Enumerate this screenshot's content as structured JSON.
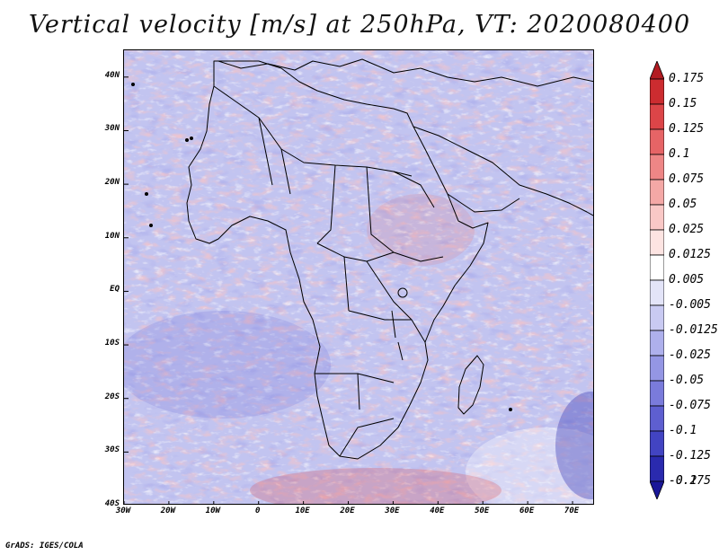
{
  "title": "Vertical velocity [m/s] at 250hPa, VT: 2020080400",
  "footer": "GrADS: IGES/COLA",
  "map": {
    "lon_range": [
      -30,
      75
    ],
    "lat_range": [
      -40,
      45
    ],
    "y_ticks": [
      {
        "lat": 40,
        "label": "40N"
      },
      {
        "lat": 30,
        "label": "30N"
      },
      {
        "lat": 20,
        "label": "20N"
      },
      {
        "lat": 10,
        "label": "10N"
      },
      {
        "lat": 0,
        "label": "EQ"
      },
      {
        "lat": -10,
        "label": "10S"
      },
      {
        "lat": -20,
        "label": "20S"
      },
      {
        "lat": -30,
        "label": "30S"
      },
      {
        "lat": -40,
        "label": "40S"
      }
    ],
    "x_ticks": [
      {
        "lon": -30,
        "label": "30W"
      },
      {
        "lon": -20,
        "label": "20W"
      },
      {
        "lon": -10,
        "label": "10W"
      },
      {
        "lon": 0,
        "label": "0"
      },
      {
        "lon": 10,
        "label": "10E"
      },
      {
        "lon": 20,
        "label": "20E"
      },
      {
        "lon": 30,
        "label": "30E"
      },
      {
        "lon": 40,
        "label": "40E"
      },
      {
        "lon": 50,
        "label": "50E"
      },
      {
        "lon": 60,
        "label": "60E"
      },
      {
        "lon": 70,
        "label": "70E"
      }
    ]
  },
  "colorbar": {
    "levels": [
      {
        "label": "0.175",
        "color": "#b21c22"
      },
      {
        "label": "0.15",
        "color": "#cc2c30"
      },
      {
        "label": "0.125",
        "color": "#dc4548"
      },
      {
        "label": "0.1",
        "color": "#e66466"
      },
      {
        "label": "0.075",
        "color": "#ee8686"
      },
      {
        "label": "0.05",
        "color": "#f4a8a6"
      },
      {
        "label": "0.025",
        "color": "#f9c8c6"
      },
      {
        "label": "0.0125",
        "color": "#fde4e2"
      },
      {
        "label": "0.005",
        "color": "#ffffff"
      },
      {
        "label": "-0.005",
        "color": "#e3e4f8"
      },
      {
        "label": "-0.0125",
        "color": "#c9caf2"
      },
      {
        "label": "-0.025",
        "color": "#aeb0ec"
      },
      {
        "label": "-0.05",
        "color": "#9496e4"
      },
      {
        "label": "-0.075",
        "color": "#7a7bdb"
      },
      {
        "label": "-0.1",
        "color": "#5e5fd0"
      },
      {
        "label": "-0.125",
        "color": "#4244c2"
      },
      {
        "label": "-0.175",
        "color": "#2a2aae"
      },
      {
        "label": "-0.2",
        "color": "#1a1798"
      }
    ]
  }
}
